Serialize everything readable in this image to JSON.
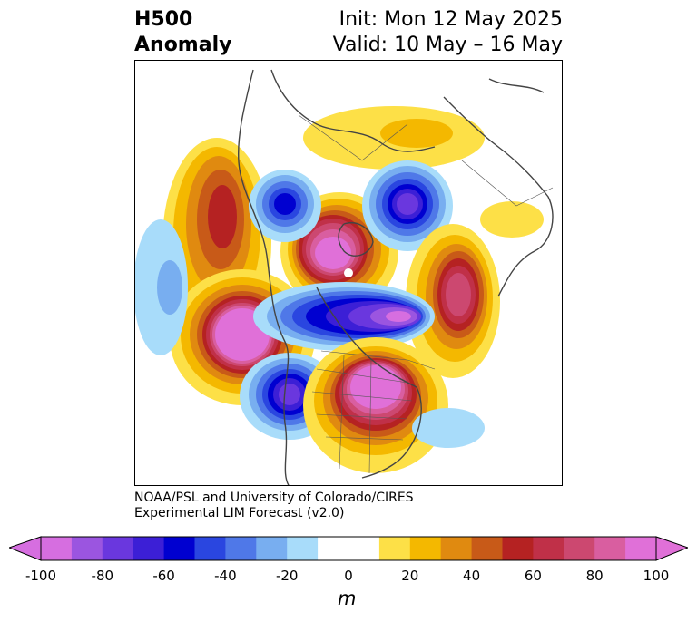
{
  "title": {
    "left_line1": "H500",
    "left_line2": "Anomaly",
    "right_line1": "Init: Mon 12 May 2025",
    "right_line2": "Valid: 10 May – 16 May"
  },
  "credit": {
    "line1": "NOAA/PSL and University of Colorado/CIRES",
    "line2": "Experimental LIM Forecast (v2.0)"
  },
  "colorbar": {
    "unit": "m",
    "tick_labels": [
      "-100",
      "-80",
      "-60",
      "-40",
      "-20",
      "0",
      "20",
      "40",
      "60",
      "80",
      "100"
    ],
    "colors": [
      "#d66ee0",
      "#9b55e0",
      "#6a37de",
      "#3c1fd6",
      "#0000d0",
      "#2a46e0",
      "#4f78e8",
      "#78aef0",
      "#a8dcfa",
      "#ffffff",
      "#ffffff",
      "#fde047",
      "#f4b800",
      "#e08a10",
      "#c85a18",
      "#b52222",
      "#c03048",
      "#cc4870",
      "#d95ea0",
      "#e070d8"
    ],
    "extend_low_color": "#d66ee0",
    "extend_high_color": "#e070d8"
  }
}
